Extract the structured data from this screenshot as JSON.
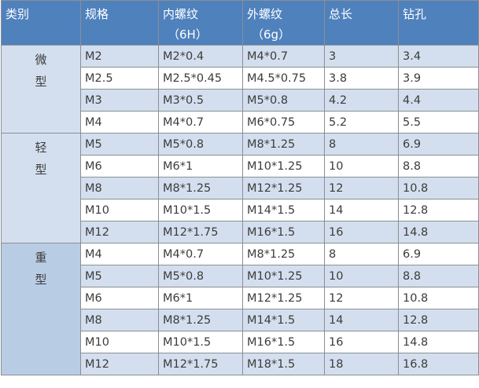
{
  "header": {
    "category": "类别",
    "spec": "规格",
    "internal_thread": "内螺纹",
    "internal_thread_tol": "（6H）",
    "external_thread": "外螺纹",
    "external_thread_tol": "（6g）",
    "total_length": "总长",
    "drill_hole": "钻孔"
  },
  "colors": {
    "header": "#4f81bd",
    "row_light": "#d3dfee",
    "row_white": "#ffffff",
    "heavy_category": "#b8cce4"
  },
  "groups": [
    {
      "label": [
        "微",
        "型"
      ],
      "rows": [
        {
          "spec": "M2",
          "internal": "M2*0.4",
          "external": "M4*0.7",
          "length": "3",
          "drill": "3.4"
        },
        {
          "spec": "M2.5",
          "internal": "M2.5*0.45",
          "external": "M4.5*0.75",
          "length": "3.8",
          "drill": "3.9"
        },
        {
          "spec": "M3",
          "internal": "M3*0.5",
          "external": "M5*0.8",
          "length": "4.2",
          "drill": "4.4"
        },
        {
          "spec": "M4",
          "internal": "M4*0.7",
          "external": "M6*0.75",
          "length": "5.2",
          "drill": "5.5"
        }
      ]
    },
    {
      "label": [
        "轻",
        "型"
      ],
      "rows": [
        {
          "spec": "M5",
          "internal": "M5*0.8",
          "external": "M8*1.25",
          "length": "8",
          "drill": "6.9"
        },
        {
          "spec": "M6",
          "internal": "M6*1",
          "external": "M10*1.25",
          "length": "10",
          "drill": "8.8"
        },
        {
          "spec": "M8",
          "internal": "M8*1.25",
          "external": "M12*1.25",
          "length": "12",
          "drill": "10.8"
        },
        {
          "spec": "M10",
          "internal": "M10*1.5",
          "external": "M14*1.5",
          "length": "14",
          "drill": "12.8"
        },
        {
          "spec": "M12",
          "internal": "M12*1.75",
          "external": "M16*1.5",
          "length": "16",
          "drill": "14.8"
        }
      ]
    },
    {
      "label": [
        "重",
        "型"
      ],
      "rows": [
        {
          "spec": "M4",
          "internal": "M4*0.7",
          "external": "M8*1.25",
          "length": "8",
          "drill": "6.9"
        },
        {
          "spec": "M5",
          "internal": "M5*0.8",
          "external": "M10*1.25",
          "length": "10",
          "drill": "8.8"
        },
        {
          "spec": "M6",
          "internal": "M6*1",
          "external": "M12*1.25",
          "length": "12",
          "drill": "10.8"
        },
        {
          "spec": "M8",
          "internal": "M8*1.25",
          "external": "M14*1.5",
          "length": "14",
          "drill": "12.8"
        },
        {
          "spec": "M10",
          "internal": "M10*1.5",
          "external": "M16*1.5",
          "length": "16",
          "drill": "14.8"
        },
        {
          "spec": "M12",
          "internal": "M12*1.75",
          "external": "M18*1.5",
          "length": "18",
          "drill": "16.8"
        }
      ]
    }
  ]
}
